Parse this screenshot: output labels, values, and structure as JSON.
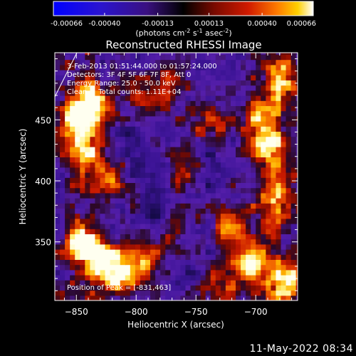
{
  "chart_data": {
    "type": "heatmap",
    "title": "Reconstructed RHESSI Image",
    "xlabel": "Heliocentric X (arcsec)",
    "ylabel": "Heliocentric Y (arcsec)",
    "xlim": [
      -868,
      -665
    ],
    "ylim": [
      302,
      505
    ],
    "x_ticks": [
      -850,
      -800,
      -750,
      -700
    ],
    "y_ticks": [
      350,
      400,
      450
    ],
    "colorbar": {
      "min": -0.00066,
      "max": 0.00066,
      "ticks": [
        "-0.00066",
        "-0.00040",
        "-0.00013",
        "0.00013",
        "0.00040",
        "0.00066"
      ],
      "unit_label": [
        "(photons cm",
        "-2",
        " s",
        "-1",
        " asec",
        "-2",
        ")"
      ]
    },
    "annotations": [
      "3-Feb-2013 01:51:44.000 to 01:57:24.000",
      "Detectors: 3F 4F 5F 6F 7F 8F, Att 0",
      "Energy Range: 25.0 - 50.0 keV",
      "Clean     Total counts: 1.11E+04"
    ],
    "peak_label": "Position of Peak = [-831,463]",
    "peak": [
      -831,
      463
    ],
    "bright_regions": [
      {
        "x": -838,
        "y": 462,
        "level": 1.0
      },
      {
        "x": -848,
        "y": 445,
        "level": 0.8
      },
      {
        "x": -842,
        "y": 346,
        "level": 0.95
      },
      {
        "x": -825,
        "y": 334,
        "level": 0.7
      },
      {
        "x": -812,
        "y": 322,
        "level": 0.85
      },
      {
        "x": -795,
        "y": 340,
        "level": 0.5
      },
      {
        "x": -842,
        "y": 420,
        "level": 0.6
      },
      {
        "x": -822,
        "y": 400,
        "level": 0.5
      },
      {
        "x": -690,
        "y": 425,
        "level": 0.75
      },
      {
        "x": -694,
        "y": 452,
        "level": 0.65
      },
      {
        "x": -672,
        "y": 318,
        "level": 0.9
      },
      {
        "x": -705,
        "y": 332,
        "level": 0.7
      },
      {
        "x": -735,
        "y": 312,
        "level": 0.55
      },
      {
        "x": -718,
        "y": 365,
        "level": 0.6
      },
      {
        "x": -684,
        "y": 392,
        "level": 0.5
      },
      {
        "x": -740,
        "y": 448,
        "level": 0.45
      },
      {
        "x": -760,
        "y": 410,
        "level": 0.4
      },
      {
        "x": -775,
        "y": 480,
        "level": 0.45
      },
      {
        "x": -792,
        "y": 466,
        "level": 0.4
      },
      {
        "x": -770,
        "y": 360,
        "level": 0.4
      },
      {
        "x": -680,
        "y": 485,
        "level": 0.55
      }
    ],
    "dark_regions": [
      {
        "x": -790,
        "y": 400
      },
      {
        "x": -740,
        "y": 410
      },
      {
        "x": -780,
        "y": 372
      },
      {
        "x": -755,
        "y": 320
      },
      {
        "x": -810,
        "y": 430
      }
    ]
  },
  "footer": {
    "timestamp": "11-May-2022 08:34"
  }
}
